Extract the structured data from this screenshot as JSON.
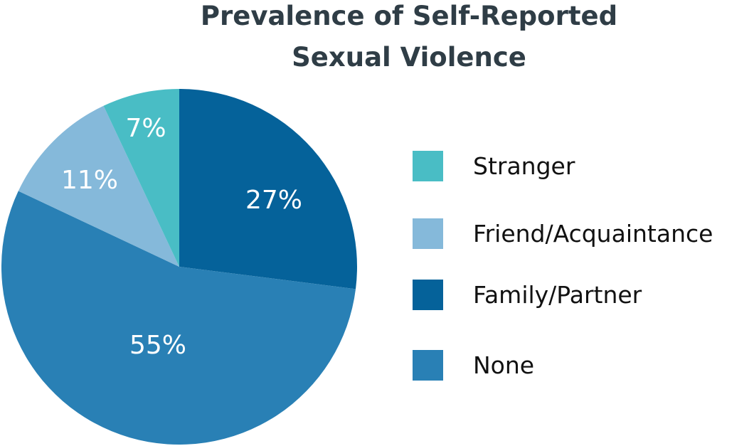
{
  "title": {
    "line1": "Prevalence of Self-Reported",
    "line2": "Sexual Violence"
  },
  "legend": [
    {
      "label": "Stranger",
      "color": "#49bdc5"
    },
    {
      "label": "Friend/Acquaintance",
      "color": "#85b9da"
    },
    {
      "label": "Family/Partner",
      "color": "#05629a"
    },
    {
      "label": "None",
      "color": "#2980b5"
    }
  ],
  "slice_labels": {
    "family": "27%",
    "none": "55%",
    "friend": "11%",
    "stranger": "7%"
  },
  "chart_data": {
    "type": "pie",
    "title": "Prevalence of Self-Reported Sexual Violence",
    "categories": [
      "Stranger",
      "Friend/Acquaintance",
      "Family/Partner",
      "None"
    ],
    "values": [
      7,
      11,
      27,
      55
    ],
    "unit": "%",
    "colors": [
      "#49bdc5",
      "#85b9da",
      "#05629a",
      "#2980b5"
    ],
    "legend_position": "right",
    "start_angle": "12 o'clock, clockwise: Family/Partner, None, Friend/Acquaintance, Stranger"
  }
}
